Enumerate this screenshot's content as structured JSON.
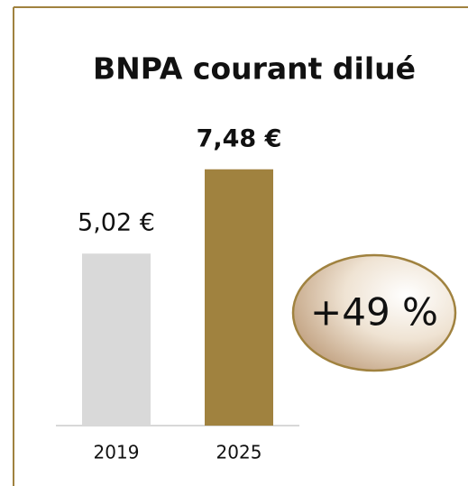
{
  "chart_data": {
    "type": "bar",
    "title": "BNPA courant dilué",
    "categories": [
      "2019",
      "2025"
    ],
    "values": [
      5.02,
      7.48
    ],
    "value_labels": [
      "5,02 €",
      "7,48 €"
    ],
    "colors": [
      "#d9d9d9",
      "#a0823f"
    ],
    "annotation": "+49 %"
  }
}
